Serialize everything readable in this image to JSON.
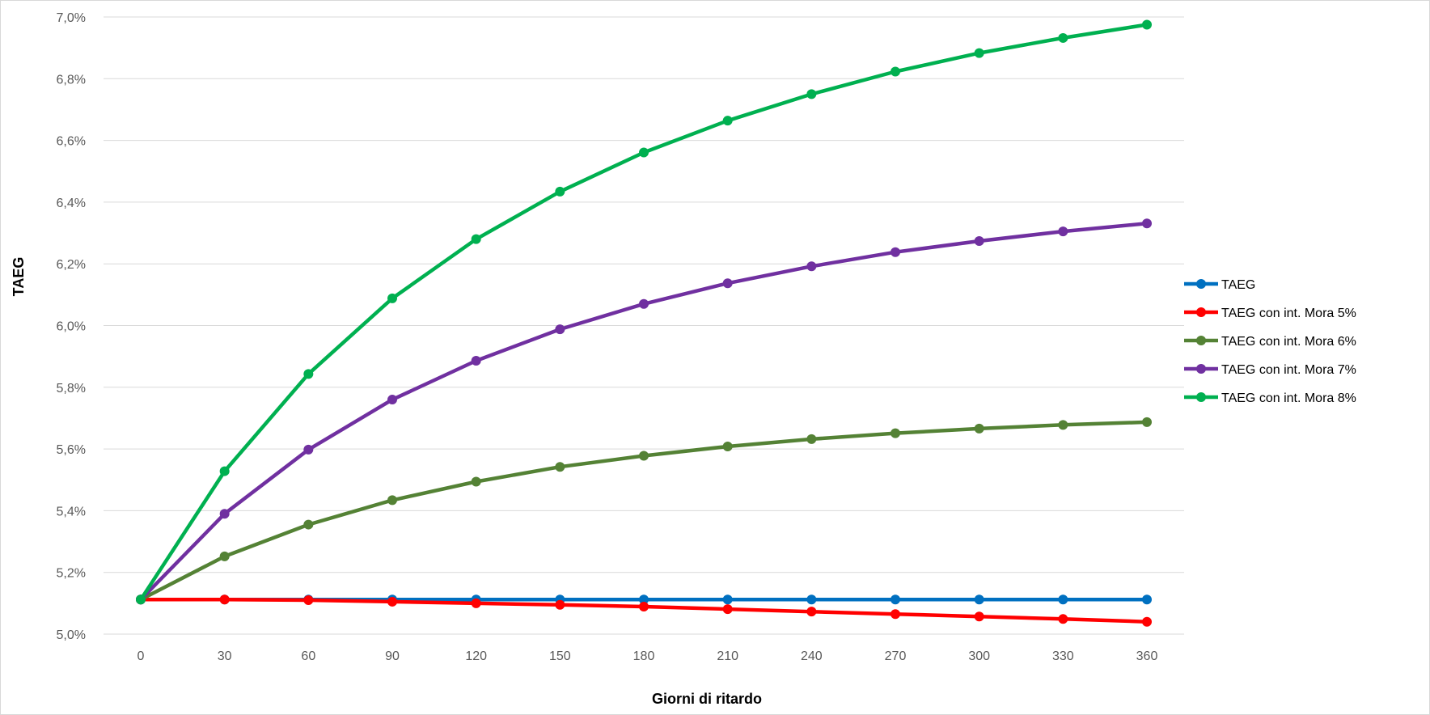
{
  "chart_data": {
    "type": "line",
    "title": "",
    "xlabel": "Giorni di ritardo",
    "ylabel": "TAEG",
    "x": [
      0,
      30,
      60,
      90,
      120,
      150,
      180,
      210,
      240,
      270,
      300,
      330,
      360
    ],
    "x_tick_labels": [
      "0",
      "30",
      "60",
      "90",
      "120",
      "150",
      "180",
      "210",
      "240",
      "270",
      "300",
      "330",
      "360"
    ],
    "ylim": [
      5.0,
      7.0
    ],
    "y_ticks": [
      5.0,
      5.2,
      5.4,
      5.6,
      5.8,
      6.0,
      6.2,
      6.4,
      6.6,
      6.8,
      7.0
    ],
    "y_tick_labels": [
      "5,0%",
      "5,2%",
      "5,4%",
      "5,6%",
      "5,8%",
      "6,0%",
      "6,2%",
      "6,4%",
      "6,6%",
      "6,8%",
      "7,0%"
    ],
    "grid": "horizontal",
    "legend_position": "right",
    "series": [
      {
        "name": "TAEG",
        "color": "#0070C0",
        "values": [
          5.112,
          5.112,
          5.112,
          5.112,
          5.112,
          5.112,
          5.112,
          5.112,
          5.112,
          5.112,
          5.112,
          5.112,
          5.112
        ]
      },
      {
        "name": "TAEG con int. Mora 5%",
        "color": "#FF0000",
        "values": [
          5.112,
          5.112,
          5.11,
          5.105,
          5.1,
          5.095,
          5.089,
          5.081,
          5.073,
          5.065,
          5.057,
          5.049,
          5.04
        ]
      },
      {
        "name": "TAEG con int. Mora 6%",
        "color": "#548235",
        "values": [
          5.112,
          5.252,
          5.355,
          5.434,
          5.494,
          5.542,
          5.578,
          5.608,
          5.632,
          5.651,
          5.666,
          5.678,
          5.687
        ]
      },
      {
        "name": "TAEG con int. Mora 7%",
        "color": "#7030A0",
        "values": [
          5.112,
          5.39,
          5.598,
          5.76,
          5.886,
          5.988,
          6.07,
          6.137,
          6.192,
          6.238,
          6.274,
          6.305,
          6.331
        ]
      },
      {
        "name": "TAEG con int. Mora 8%",
        "color": "#00B050",
        "values": [
          5.112,
          5.528,
          5.843,
          6.088,
          6.28,
          6.434,
          6.561,
          6.664,
          6.75,
          6.823,
          6.883,
          6.932,
          6.975
        ]
      }
    ]
  }
}
